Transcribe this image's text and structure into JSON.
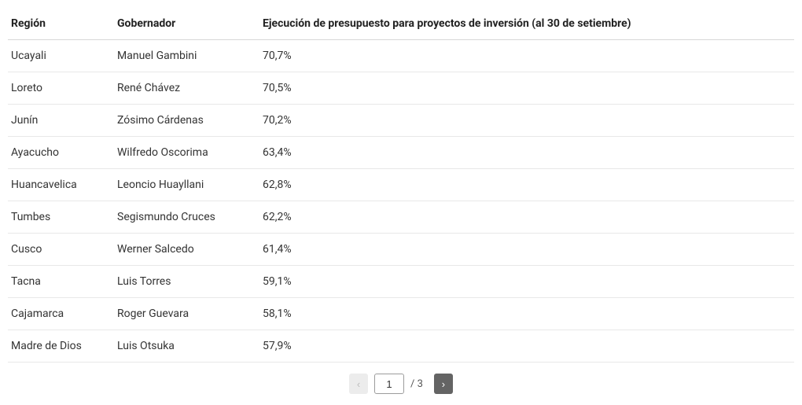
{
  "table": {
    "columns": [
      {
        "key": "region",
        "label": "Región"
      },
      {
        "key": "gobernador",
        "label": "Gobernador"
      },
      {
        "key": "ejecucion",
        "label": "Ejecución de presupuesto para proyectos de inversión (al 30 de setiembre)"
      }
    ],
    "rows": [
      {
        "region": "Ucayali",
        "gobernador": "Manuel Gambini",
        "ejecucion": "70,7%"
      },
      {
        "region": "Loreto",
        "gobernador": "René Chávez",
        "ejecucion": "70,5%"
      },
      {
        "region": "Junín",
        "gobernador": "Zósimo Cárdenas",
        "ejecucion": "70,2%"
      },
      {
        "region": "Ayacucho",
        "gobernador": "Wilfredo Oscorima",
        "ejecucion": "63,4%"
      },
      {
        "region": "Huancavelica",
        "gobernador": "Leoncio Huayllani",
        "ejecucion": "62,8%"
      },
      {
        "region": "Tumbes",
        "gobernador": "Segismundo Cruces",
        "ejecucion": "62,2%"
      },
      {
        "region": "Cusco",
        "gobernador": "Werner Salcedo",
        "ejecucion": "61,4%"
      },
      {
        "region": "Tacna",
        "gobernador": "Luis Torres",
        "ejecucion": "59,1%"
      },
      {
        "region": "Cajamarca",
        "gobernador": "Roger Guevara",
        "ejecucion": "58,1%"
      },
      {
        "region": "Madre de Dios",
        "gobernador": "Luis Otsuka",
        "ejecucion": "57,9%"
      }
    ]
  },
  "pagination": {
    "prev_label": "‹",
    "next_label": "›",
    "current_page": "1",
    "total_label": "/ 3"
  },
  "style": {
    "header_bg": "#ffffff",
    "border_color": "#e8e8e8",
    "text_color": "#333333",
    "prev_bg": "#ececec",
    "prev_fg": "#bdbdbd",
    "next_bg": "#646464",
    "next_fg": "#ffffff"
  }
}
